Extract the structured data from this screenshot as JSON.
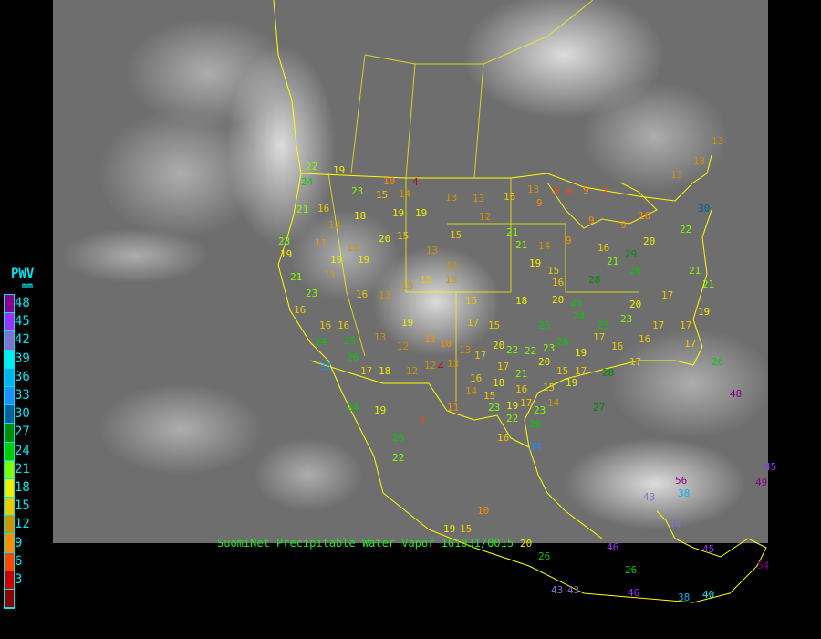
{
  "legend": {
    "title": "PWV",
    "unit": "mm",
    "bins": [
      {
        "label": "48",
        "color": "#8b008b"
      },
      {
        "label": "45",
        "color": "#9b30ff"
      },
      {
        "label": "42",
        "color": "#8470d0"
      },
      {
        "label": "39",
        "color": "#00eeee"
      },
      {
        "label": "36",
        "color": "#00b2ee"
      },
      {
        "label": "33",
        "color": "#1e90ff"
      },
      {
        "label": "30",
        "color": "#005f9f"
      },
      {
        "label": "27",
        "color": "#008b00"
      },
      {
        "label": "24",
        "color": "#00cd00"
      },
      {
        "label": "21",
        "color": "#7fff00"
      },
      {
        "label": "18",
        "color": "#eeee00"
      },
      {
        "label": "15",
        "color": "#eec900"
      },
      {
        "label": "12",
        "color": "#cd9500"
      },
      {
        "label": "9",
        "color": "#ff8c00"
      },
      {
        "label": "6",
        "color": "#ff4500"
      },
      {
        "label": "3",
        "color": "#cd0000"
      },
      {
        "label": "",
        "color": "#8b0000"
      }
    ]
  },
  "caption": "SuomiNet Precipitable Water Vapor 161031/0015",
  "border_color": "#ffff00",
  "stations": [
    "22",
    "19",
    "24",
    "10",
    "4",
    "23",
    "15",
    "14",
    "13",
    "13",
    "16",
    "13",
    "9",
    "8",
    "6",
    "9",
    "7",
    "21",
    "16",
    "13",
    "18",
    "19",
    "19",
    "15",
    "12",
    "21",
    "23",
    "19",
    "11",
    "19",
    "13",
    "19",
    "20",
    "15",
    "13",
    "13",
    "21",
    "14",
    "9",
    "16",
    "9",
    "9",
    "10",
    "13",
    "13",
    "13",
    "30",
    "22",
    "20",
    "29",
    "11",
    "21",
    "23",
    "16",
    "16",
    "13",
    "13",
    "15",
    "13",
    "15",
    "18",
    "19",
    "15",
    "16",
    "20",
    "25",
    "28",
    "21",
    "26",
    "21",
    "21",
    "17",
    "20",
    "23",
    "25",
    "24",
    "25",
    "16",
    "16",
    "19",
    "17",
    "15",
    "24",
    "25",
    "13",
    "12",
    "11",
    "10",
    "13",
    "20",
    "22",
    "22",
    "23",
    "26",
    "19",
    "17",
    "16",
    "16",
    "17",
    "17",
    "19",
    "33",
    "26",
    "17",
    "18",
    "12",
    "12",
    "4",
    "13",
    "17",
    "17",
    "21",
    "20",
    "15",
    "17",
    "28",
    "17",
    "17",
    "16",
    "18",
    "16",
    "15",
    "19",
    "14",
    "15",
    "24",
    "19",
    "11",
    "23",
    "19",
    "17",
    "14",
    "23",
    "22",
    "26",
    "27",
    "7",
    "26",
    "16",
    "34",
    "22",
    "10",
    "19",
    "15",
    "26",
    "48",
    "56",
    "38",
    "43",
    "49",
    "45",
    "44",
    "46",
    "26",
    "26",
    "43",
    "43",
    "46",
    "38",
    "40",
    "45",
    "54",
    "20"
  ]
}
